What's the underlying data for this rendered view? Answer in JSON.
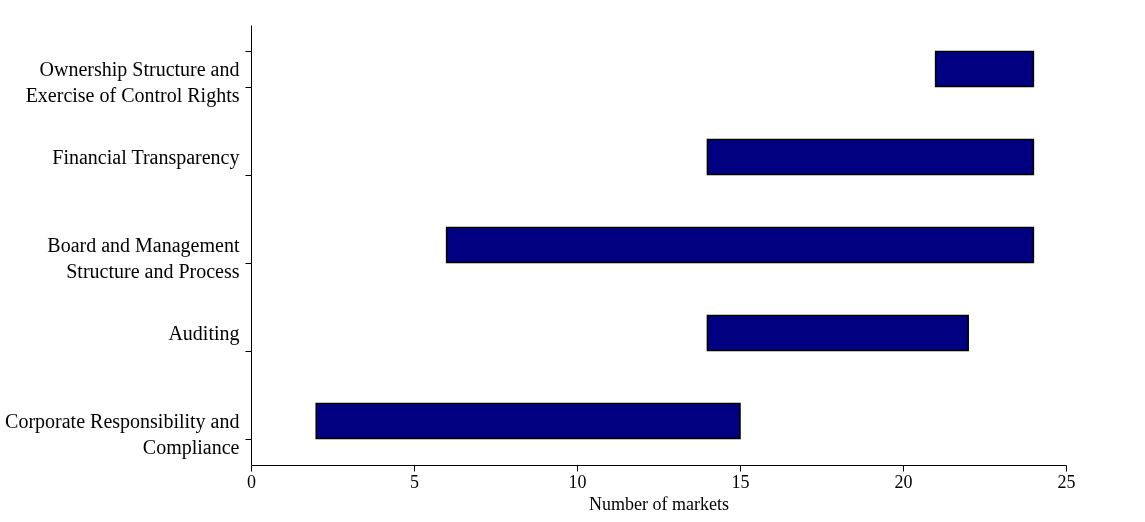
{
  "chart_data": {
    "type": "bar",
    "orientation": "horizontal",
    "xlabel": "Number of markets",
    "categories": [
      "Ownership Structure and\nExercise of Control Rights",
      "Financial Transparency",
      "Board and Management\nStructure and Process",
      "Auditing",
      "Corporate Responsibility and\nCompliance"
    ],
    "base": [
      21,
      14,
      6,
      14,
      2
    ],
    "values": [
      3,
      10,
      18,
      8,
      13
    ],
    "color": "#000080",
    "xlim": [
      0,
      25
    ],
    "xticks": [
      0,
      5,
      10,
      15,
      20,
      25
    ],
    "grid": false
  }
}
